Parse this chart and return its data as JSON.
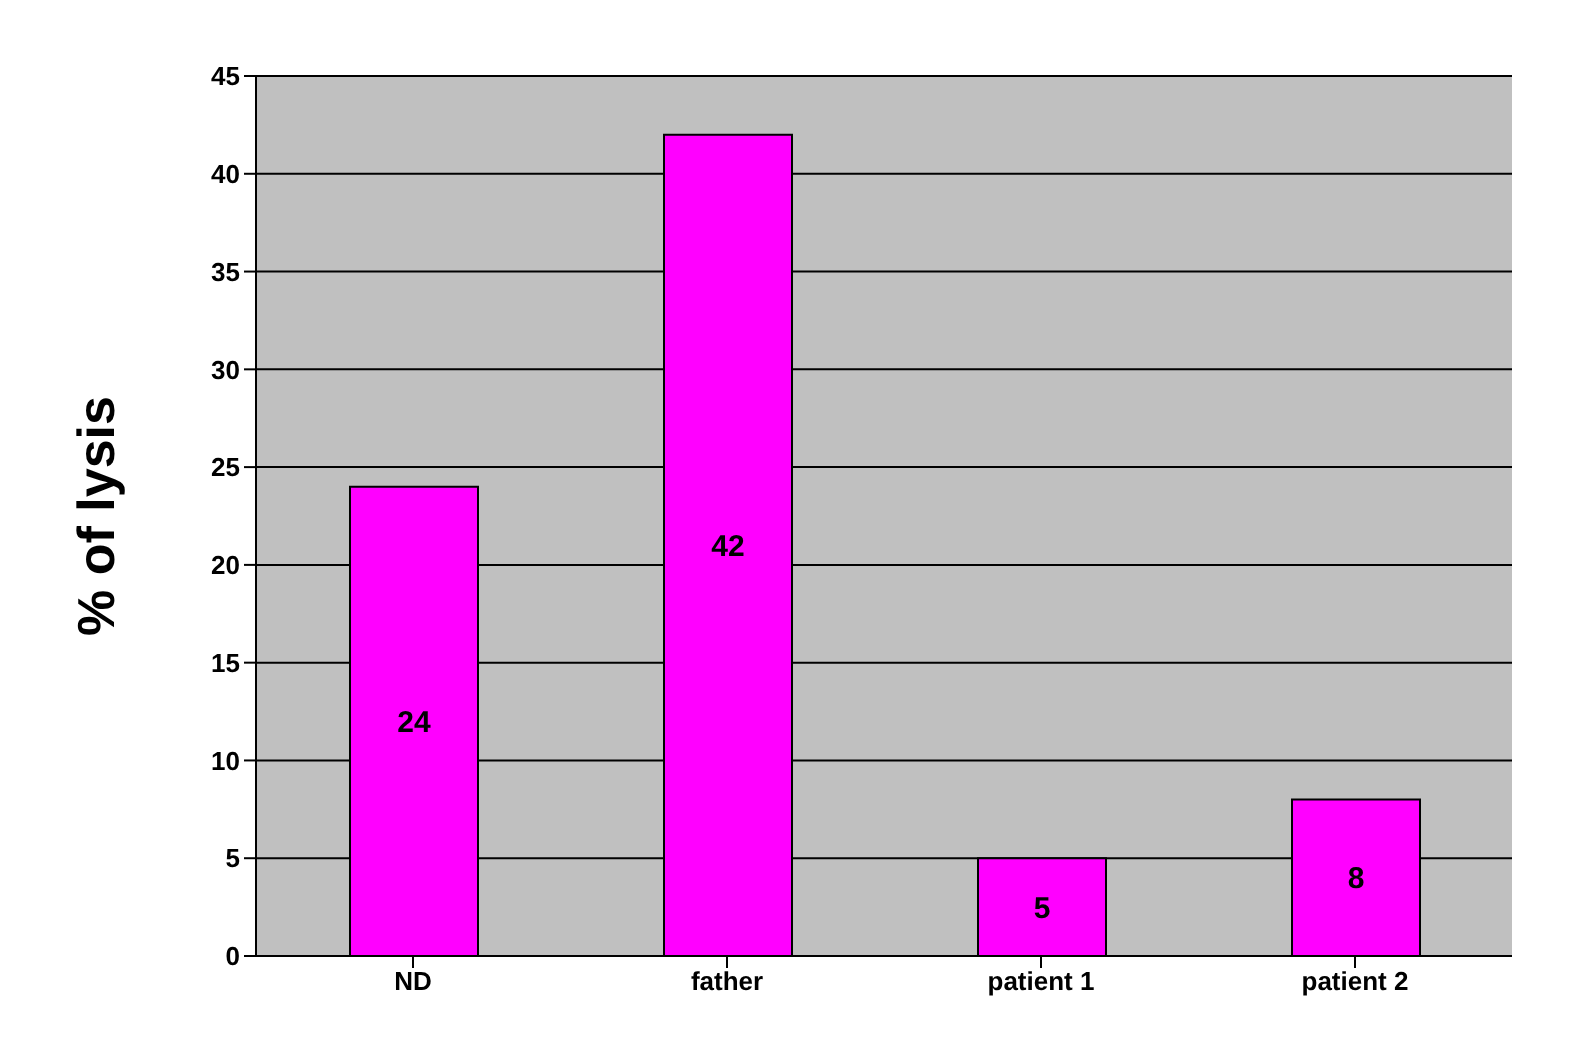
{
  "chart_data": {
    "type": "bar",
    "ylabel": "% of lysis",
    "categories": [
      "ND",
      "father",
      "patient 1",
      "patient 2"
    ],
    "values": [
      24,
      42,
      5,
      8
    ],
    "color": "#ff00ff",
    "ylim": [
      0,
      45
    ],
    "yticks": [
      0,
      5,
      10,
      15,
      20,
      25,
      30,
      35,
      40,
      45
    ],
    "grid": "y",
    "data_labels": true
  }
}
